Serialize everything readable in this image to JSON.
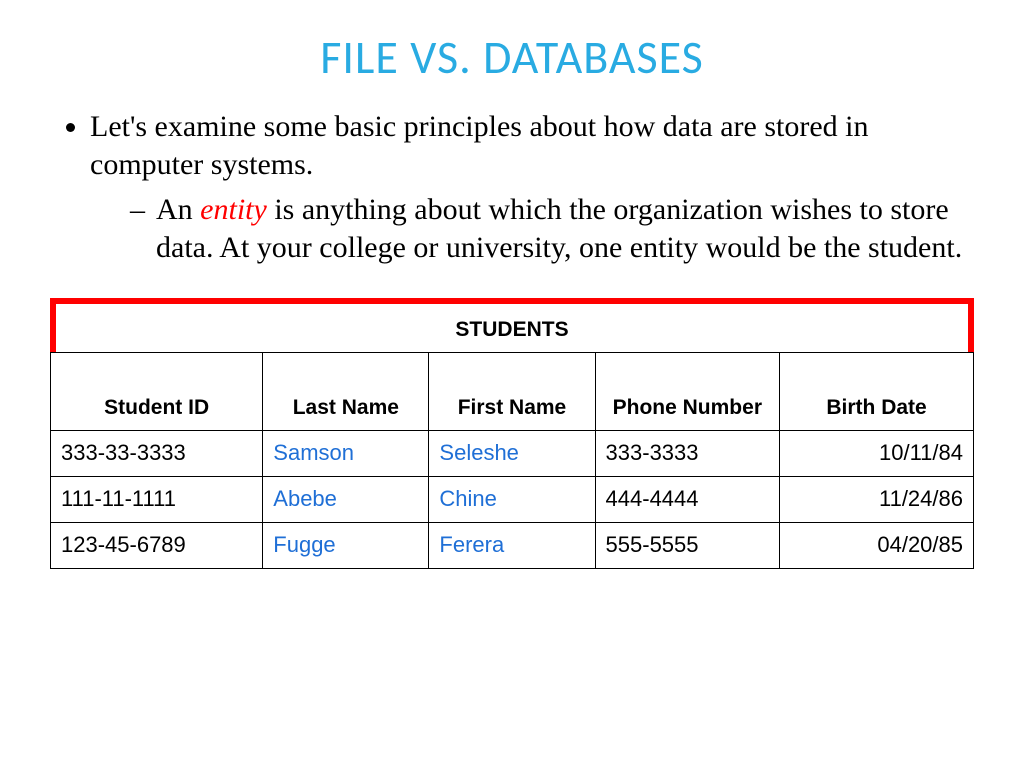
{
  "colors": {
    "title": "#29abe2",
    "highlight": "#ff0000",
    "table_title_border": "#ff0000",
    "name_text": "#1f6fd6",
    "body_text": "#000000"
  },
  "title": "FILE VS. DATABASES",
  "bullets": {
    "main": "Let's examine some basic principles about how data are stored in computer systems.",
    "sub_pre": "An ",
    "sub_highlight": "entity",
    "sub_post": " is anything about which the organization wishes to store data.  At your college or university, one entity would be the student."
  },
  "table": {
    "title": "STUDENTS",
    "columns": [
      "Student ID",
      "Last Name",
      "First Name",
      "Phone Number",
      "Birth Date"
    ],
    "rows": [
      {
        "id": "333-33-3333",
        "last": "Samson",
        "first": "Seleshe",
        "phone": "333-3333",
        "birth": "10/11/84"
      },
      {
        "id": "111-11-1111",
        "last": "Abebe",
        "first": "Chine",
        "phone": "444-4444",
        "birth": "11/24/86"
      },
      {
        "id": "123-45-6789",
        "last": "Fugge",
        "first": "Ferera",
        "phone": "555-5555",
        "birth": "04/20/85"
      }
    ]
  }
}
